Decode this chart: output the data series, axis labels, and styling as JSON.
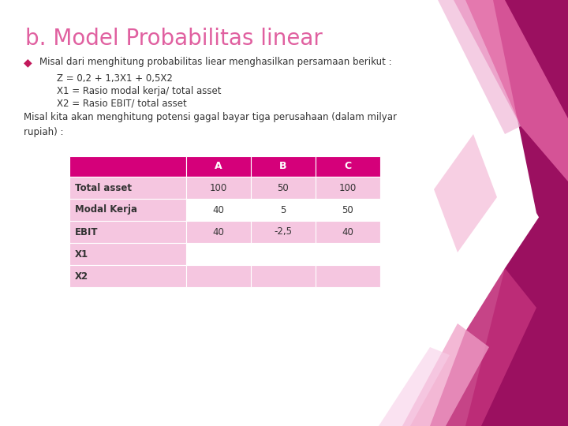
{
  "title": "b. Model Probabilitas linear",
  "title_color": "#E060A0",
  "bg_color": "#FFFFFF",
  "bullet_text": "Misal dari menghitung probabilitas liear menghasilkan persamaan berikut :",
  "bullet_color": "#C2185B",
  "line1": "Z = 0,2 + 1,3X1 + 0,5X2",
  "line2": "X1 = Rasio modal kerja/ total asset",
  "line3": "X2 = Rasio EBIT/ total asset",
  "para": "Misal kita akan menghitung potensi gagal bayar tiga perusahaan (dalam milyar\nrupiah) :",
  "table_header_bg": "#D5007A",
  "table_header_text": "#FFFFFF",
  "table_row_light_bg": "#F5C6E0",
  "table_row_white_bg": "#FFFFFF",
  "table_border_color": "#D5007A",
  "table_cols": [
    "",
    "A",
    "B",
    "C"
  ],
  "table_rows": [
    [
      "Total asset",
      "100",
      "50",
      "100"
    ],
    [
      "Modal Kerja",
      "40",
      "5",
      "50"
    ],
    [
      "EBIT",
      "40",
      "-2,5",
      "40"
    ],
    [
      "X1",
      "",
      "",
      ""
    ],
    [
      "X2",
      "",
      "",
      ""
    ]
  ],
  "text_color": "#333333",
  "decor1_color": "#E060A0",
  "decor2_color": "#9B1060",
  "decor3_color": "#F0A0C8",
  "decor4_color": "#C0307A"
}
